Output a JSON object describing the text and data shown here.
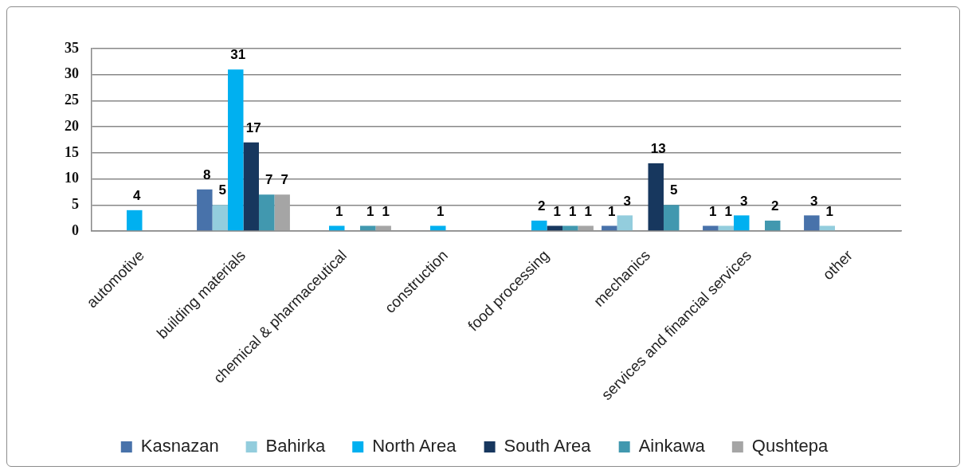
{
  "chart_data": {
    "type": "bar",
    "categories": [
      "automotive",
      "building materials",
      "chemical & pharmaceutical",
      "construction",
      "food processing",
      "mechanics",
      "services and financial services",
      "other"
    ],
    "series": [
      {
        "name": "Kasnazan",
        "color": "#4872aa",
        "values": [
          null,
          8,
          null,
          null,
          null,
          1,
          1,
          3
        ]
      },
      {
        "name": "Bahirka",
        "color": "#93cddd",
        "values": [
          null,
          5,
          null,
          null,
          null,
          3,
          1,
          1
        ]
      },
      {
        "name": "North Area",
        "color": "#00b0f0",
        "values": [
          4,
          31,
          1,
          1,
          2,
          null,
          3,
          null
        ]
      },
      {
        "name": "South Area",
        "color": "#17375e",
        "values": [
          null,
          17,
          null,
          null,
          1,
          13,
          null,
          null
        ]
      },
      {
        "name": "Ainkawa",
        "color": "#4198af",
        "values": [
          null,
          7,
          1,
          null,
          1,
          5,
          2,
          null
        ]
      },
      {
        "name": "Qushtepa",
        "color": "#a5a5a5",
        "values": [
          null,
          7,
          1,
          null,
          1,
          null,
          null,
          null
        ]
      }
    ],
    "ylim": [
      0,
      35
    ],
    "yticks": [
      0,
      5,
      10,
      15,
      20,
      25,
      30,
      35
    ],
    "grid": "y",
    "legend": "bottom",
    "data_labels": true
  }
}
